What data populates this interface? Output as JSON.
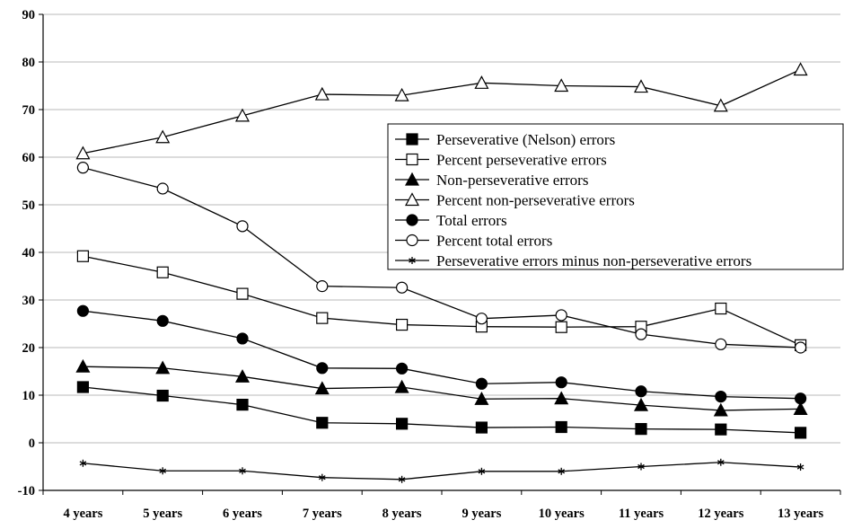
{
  "chart_data": {
    "type": "line",
    "title": "",
    "xlabel": "",
    "ylabel": "",
    "categories": [
      "4 years",
      "5 years",
      "6 years",
      "7 years",
      "8 years",
      "9 years",
      "10 years",
      "11 years",
      "12 years",
      "13 years"
    ],
    "ylim": [
      -10,
      90
    ],
    "yticks": [
      -10,
      0,
      10,
      20,
      30,
      40,
      50,
      60,
      70,
      80,
      90
    ],
    "grid": "horizontal",
    "legend_position": "right",
    "series": [
      {
        "name": "Perseverative (Nelson) errors",
        "marker": "filled-square",
        "values": [
          11.7,
          9.9,
          8.0,
          4.2,
          4.0,
          3.2,
          3.3,
          2.9,
          2.8,
          2.1
        ]
      },
      {
        "name": "Percent perseverative errors",
        "marker": "open-square",
        "values": [
          39.2,
          35.8,
          31.3,
          26.2,
          24.8,
          24.4,
          24.3,
          24.4,
          28.2,
          20.5
        ]
      },
      {
        "name": "Non-perseverative errors",
        "marker": "filled-triangle",
        "values": [
          16.0,
          15.7,
          13.9,
          11.4,
          11.7,
          9.2,
          9.3,
          7.9,
          6.8,
          7.1
        ]
      },
      {
        "name": "Percent non-perseverative errors",
        "marker": "open-triangle",
        "values": [
          60.8,
          64.2,
          68.7,
          73.2,
          73.0,
          75.6,
          75.0,
          74.8,
          70.8,
          78.4
        ]
      },
      {
        "name": "Total errors",
        "marker": "filled-circle",
        "values": [
          27.7,
          25.6,
          21.9,
          15.7,
          15.6,
          12.4,
          12.7,
          10.8,
          9.7,
          9.3
        ]
      },
      {
        "name": "Percent total errors",
        "marker": "open-circle",
        "values": [
          57.8,
          53.4,
          45.5,
          32.9,
          32.6,
          26.1,
          26.8,
          22.8,
          20.7,
          20.0
        ]
      },
      {
        "name": "Perseverative errors minus non-perseverative errors",
        "marker": "asterisk",
        "values": [
          -4.3,
          -5.9,
          -5.9,
          -7.3,
          -7.7,
          -6.0,
          -6.0,
          -5.0,
          -4.1,
          -5.1
        ]
      }
    ]
  }
}
